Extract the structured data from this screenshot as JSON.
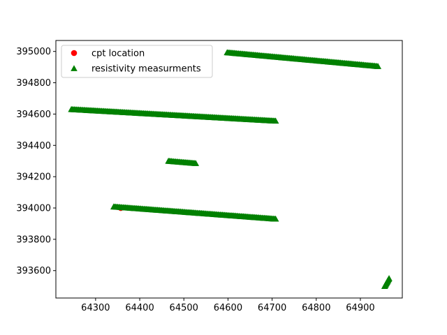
{
  "chart_data": {
    "type": "scatter",
    "title": "",
    "xlabel": "",
    "ylabel": "",
    "xlim": [
      64210,
      64995
    ],
    "ylim": [
      393425,
      395070
    ],
    "xticks": [
      64300,
      64400,
      64500,
      64600,
      64700,
      64800,
      64900
    ],
    "yticks": [
      393600,
      393800,
      394000,
      394200,
      394400,
      394600,
      394800,
      395000
    ],
    "grid": false,
    "legend_position": "upper-left",
    "series": [
      {
        "name": "cpt location",
        "marker": "circle",
        "color": "#ff0000",
        "points": [
          [
            64357,
            394000
          ]
        ]
      },
      {
        "name": "resistivity measurments",
        "marker": "triangle",
        "color": "#008000",
        "segments": [
          {
            "start": [
              64598,
              394993
            ],
            "end": [
              64940,
              394905
            ]
          },
          {
            "start": [
              64245,
              394630
            ],
            "end": [
              64708,
              394556
            ]
          },
          {
            "start": [
              64465,
              394300
            ],
            "end": [
              64527,
              394285
            ]
          },
          {
            "start": [
              64341,
              394008
            ],
            "end": [
              64708,
              393930
            ]
          },
          {
            "start": [
              64955,
              393500
            ],
            "end": [
              64965,
              393550
            ]
          }
        ]
      }
    ]
  }
}
